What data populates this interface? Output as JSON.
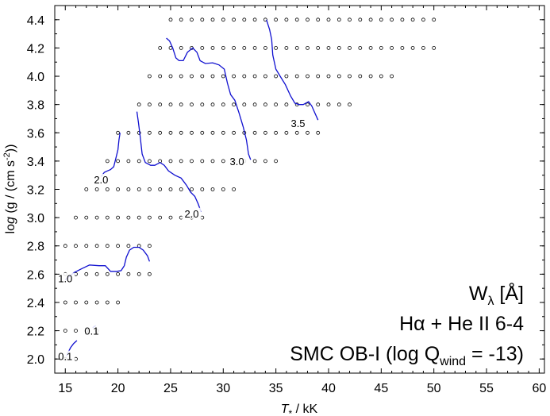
{
  "chart_data": {
    "type": "scatter",
    "xlabel": "T* / kK",
    "ylabel": "log (g / (cm s-2))",
    "xlim": [
      14,
      60.5
    ],
    "ylim": [
      1.9,
      4.5
    ],
    "x_ticks": [
      15,
      20,
      25,
      30,
      35,
      40,
      45,
      50,
      55,
      60
    ],
    "y_ticks": [
      2.0,
      2.2,
      2.4,
      2.6,
      2.8,
      3.0,
      3.2,
      3.4,
      3.6,
      3.8,
      4.0,
      4.2,
      4.4
    ],
    "grid": false,
    "annotations": [
      {
        "text": "Wλ [Å]"
      },
      {
        "text": "Hα + He II 6-4"
      },
      {
        "text": "SMC OB-I (log Q",
        "sub": "wind",
        "after": " = -13)"
      }
    ],
    "model_grid": {
      "rows": [
        {
          "logg": 2.0,
          "teff": [
            15,
            16
          ]
        },
        {
          "logg": 2.2,
          "teff": [
            15,
            16,
            17,
            18
          ]
        },
        {
          "logg": 2.4,
          "teff": [
            15,
            16,
            17,
            18,
            19,
            20
          ]
        },
        {
          "logg": 2.6,
          "teff": [
            15,
            16,
            17,
            18,
            19,
            20,
            21,
            22,
            23
          ]
        },
        {
          "logg": 2.8,
          "teff": [
            15,
            16,
            17,
            18,
            19,
            20,
            21,
            22,
            23
          ]
        },
        {
          "logg": 3.0,
          "teff": [
            16,
            17,
            18,
            19,
            20,
            21,
            22,
            23,
            24,
            25,
            26,
            27,
            28
          ]
        },
        {
          "logg": 3.2,
          "teff": [
            17,
            18,
            19,
            20,
            21,
            22,
            23,
            24,
            25,
            26,
            27,
            28,
            29,
            30,
            31
          ]
        },
        {
          "logg": 3.4,
          "teff": [
            19,
            20,
            21,
            22,
            23,
            24,
            25,
            26,
            27,
            28,
            29,
            30,
            31,
            32,
            33,
            34,
            35
          ]
        },
        {
          "logg": 3.6,
          "teff": [
            20,
            21,
            22,
            23,
            24,
            25,
            26,
            27,
            28,
            29,
            30,
            31,
            32,
            33,
            34,
            35,
            36,
            37,
            38,
            39
          ]
        },
        {
          "logg": 3.8,
          "teff": [
            22,
            23,
            24,
            25,
            26,
            27,
            28,
            29,
            30,
            31,
            32,
            33,
            34,
            35,
            36,
            37,
            38,
            39,
            40,
            41,
            42
          ]
        },
        {
          "logg": 4.0,
          "teff": [
            23,
            24,
            25,
            26,
            27,
            28,
            29,
            30,
            31,
            32,
            33,
            34,
            35,
            36,
            37,
            38,
            39,
            40,
            41,
            42,
            43,
            44,
            45,
            46
          ]
        },
        {
          "logg": 4.2,
          "teff": [
            24,
            25,
            26,
            27,
            28,
            29,
            30,
            31,
            32,
            33,
            34,
            35,
            36,
            37,
            38,
            39,
            40,
            41,
            42,
            43,
            44,
            45,
            46,
            47,
            48,
            49,
            50
          ]
        },
        {
          "logg": 4.4,
          "teff": [
            25,
            26,
            27,
            28,
            29,
            30,
            31,
            32,
            33,
            34,
            35,
            36,
            37,
            38,
            39,
            40,
            41,
            42,
            43,
            44,
            45,
            46,
            47,
            48,
            49,
            50
          ]
        }
      ]
    },
    "contours": [
      {
        "level": "0.1",
        "points": [
          [
            15.1,
            2.02
          ],
          [
            15.3,
            2.05
          ],
          [
            15.5,
            2.08
          ],
          [
            15.8,
            2.11
          ],
          [
            16.1,
            2.13
          ]
        ]
      },
      {
        "level": "0.1",
        "points": [
          [
            17.6,
            2.22
          ],
          [
            17.75,
            2.23
          ],
          [
            17.9,
            2.235
          ]
        ]
      },
      {
        "level": "1.0",
        "points": [
          [
            15.0,
            2.56
          ],
          [
            15.8,
            2.61
          ],
          [
            16.6,
            2.64
          ],
          [
            17.3,
            2.665
          ],
          [
            18.2,
            2.66
          ],
          [
            18.8,
            2.66
          ],
          [
            19.3,
            2.62
          ],
          [
            19.9,
            2.62
          ],
          [
            20.3,
            2.625
          ],
          [
            20.6,
            2.66
          ],
          [
            20.8,
            2.72
          ],
          [
            21.1,
            2.77
          ],
          [
            21.5,
            2.79
          ],
          [
            22.0,
            2.79
          ],
          [
            22.4,
            2.77
          ],
          [
            22.8,
            2.73
          ],
          [
            23.0,
            2.69
          ]
        ]
      },
      {
        "level": "2.0",
        "points": [
          [
            18.4,
            3.29
          ],
          [
            18.7,
            3.32
          ],
          [
            19.0,
            3.33
          ],
          [
            19.3,
            3.34
          ],
          [
            19.6,
            3.36
          ],
          [
            19.8,
            3.42
          ],
          [
            20.0,
            3.48
          ],
          [
            20.1,
            3.55
          ],
          [
            20.2,
            3.6
          ]
        ]
      },
      {
        "level": "2.0",
        "points": [
          [
            21.8,
            3.75
          ],
          [
            21.95,
            3.67
          ],
          [
            22.1,
            3.58
          ],
          [
            22.3,
            3.45
          ],
          [
            22.6,
            3.39
          ],
          [
            23.1,
            3.37
          ],
          [
            23.5,
            3.37
          ],
          [
            24.0,
            3.39
          ],
          [
            24.4,
            3.37
          ],
          [
            24.8,
            3.33
          ],
          [
            25.4,
            3.3
          ],
          [
            26.0,
            3.28
          ],
          [
            26.5,
            3.23
          ],
          [
            26.9,
            3.18
          ],
          [
            27.3,
            3.15
          ],
          [
            27.6,
            3.1
          ],
          [
            27.9,
            3.04
          ]
        ]
      },
      {
        "level": "3.0",
        "points": [
          [
            24.6,
            4.27
          ],
          [
            24.9,
            4.25
          ],
          [
            25.2,
            4.2
          ],
          [
            25.5,
            4.13
          ],
          [
            25.8,
            4.11
          ],
          [
            26.2,
            4.11
          ],
          [
            26.6,
            4.17
          ],
          [
            27.1,
            4.2
          ],
          [
            27.5,
            4.17
          ],
          [
            27.8,
            4.11
          ],
          [
            28.3,
            4.09
          ],
          [
            29.0,
            4.095
          ],
          [
            29.6,
            4.08
          ],
          [
            30.1,
            4.05
          ],
          [
            30.4,
            3.95
          ],
          [
            30.7,
            3.87
          ],
          [
            31.1,
            3.83
          ],
          [
            31.5,
            3.74
          ],
          [
            31.9,
            3.64
          ],
          [
            32.2,
            3.55
          ],
          [
            32.4,
            3.45
          ],
          [
            32.6,
            3.41
          ]
        ]
      },
      {
        "level": "3.5",
        "points": [
          [
            34.1,
            4.4
          ],
          [
            34.4,
            4.33
          ],
          [
            34.6,
            4.26
          ],
          [
            34.7,
            4.15
          ],
          [
            35.0,
            4.05
          ],
          [
            35.4,
            4.0
          ],
          [
            35.9,
            3.94
          ],
          [
            36.4,
            3.86
          ],
          [
            36.8,
            3.81
          ],
          [
            37.2,
            3.8
          ],
          [
            37.6,
            3.8
          ],
          [
            38.1,
            3.82
          ],
          [
            38.4,
            3.79
          ],
          [
            38.7,
            3.74
          ],
          [
            39.0,
            3.69
          ]
        ]
      }
    ],
    "contour_labels": [
      {
        "text": "0.1",
        "x": 15.0,
        "y": 2.02
      },
      {
        "text": "0.1",
        "x": 17.5,
        "y": 2.2
      },
      {
        "text": "1.0",
        "x": 15.0,
        "y": 2.57
      },
      {
        "text": "2.0",
        "x": 18.4,
        "y": 3.27
      },
      {
        "text": "2.0",
        "x": 27.0,
        "y": 3.03
      },
      {
        "text": "3.0",
        "x": 31.3,
        "y": 3.4
      },
      {
        "text": "3.5",
        "x": 37.1,
        "y": 3.67
      }
    ]
  }
}
